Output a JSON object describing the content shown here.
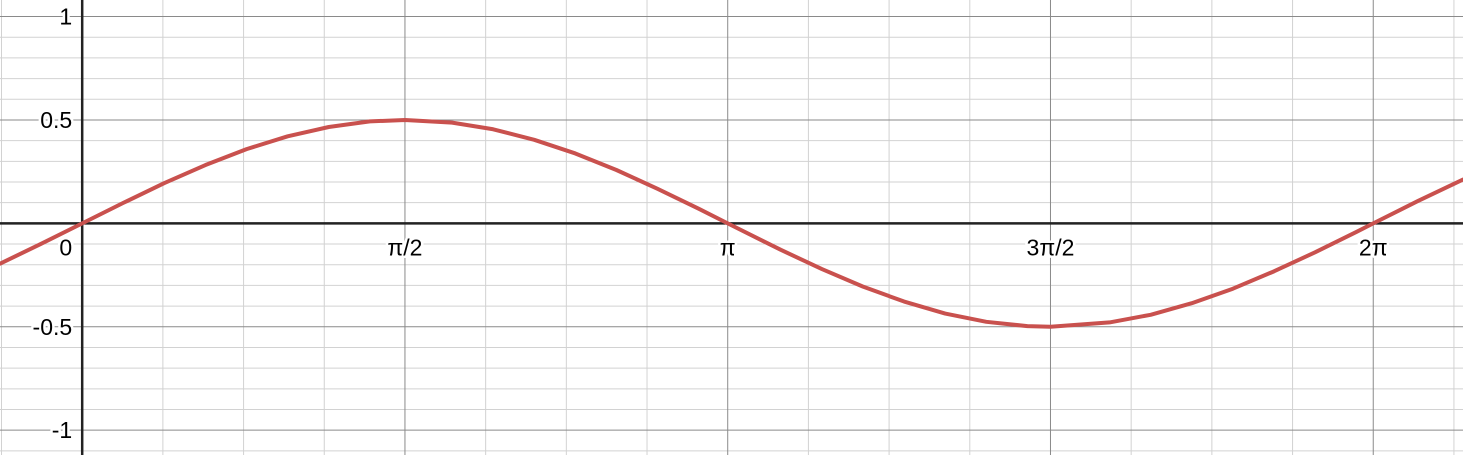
{
  "chart_data": {
    "type": "line",
    "title": "",
    "xlabel": "",
    "ylabel": "",
    "xlim": [
      -0.4,
      6.72
    ],
    "ylim": [
      -1.12,
      1.08
    ],
    "grid": true,
    "minor_grid": true,
    "x_ticks": [
      {
        "value": 1.5708,
        "label": "π/2"
      },
      {
        "value": 3.1416,
        "label": "π"
      },
      {
        "value": 4.7124,
        "label": "3π/2"
      },
      {
        "value": 6.2832,
        "label": "2π"
      }
    ],
    "origin_label": "0",
    "y_ticks": [
      {
        "value": 1,
        "label": "1"
      },
      {
        "value": 0.5,
        "label": "0.5"
      },
      {
        "value": -0.5,
        "label": "-0.5"
      },
      {
        "value": -1,
        "label": "-1"
      }
    ],
    "series": [
      {
        "color": "#c9514e",
        "x": [
          -0.4,
          -0.2,
          0,
          0.2,
          0.4,
          0.6,
          0.8,
          1.0,
          1.2,
          1.4,
          1.5708,
          1.8,
          2.0,
          2.2,
          2.4,
          2.6,
          2.8,
          3.0,
          3.1416,
          3.4,
          3.6,
          3.8,
          4.0,
          4.2,
          4.4,
          4.6,
          4.7124,
          5.0,
          5.2,
          5.4,
          5.6,
          5.8,
          6.0,
          6.2,
          6.2832,
          6.5,
          6.72
        ],
        "y": [
          -0.195,
          -0.099,
          0,
          0.099,
          0.195,
          0.282,
          0.359,
          0.421,
          0.466,
          0.493,
          0.5,
          0.487,
          0.455,
          0.404,
          0.338,
          0.258,
          0.167,
          0.071,
          0,
          -0.128,
          -0.221,
          -0.306,
          -0.378,
          -0.436,
          -0.476,
          -0.497,
          -0.5,
          -0.479,
          -0.442,
          -0.386,
          -0.316,
          -0.232,
          -0.14,
          -0.042,
          0,
          0.108,
          0.212
        ]
      }
    ]
  }
}
